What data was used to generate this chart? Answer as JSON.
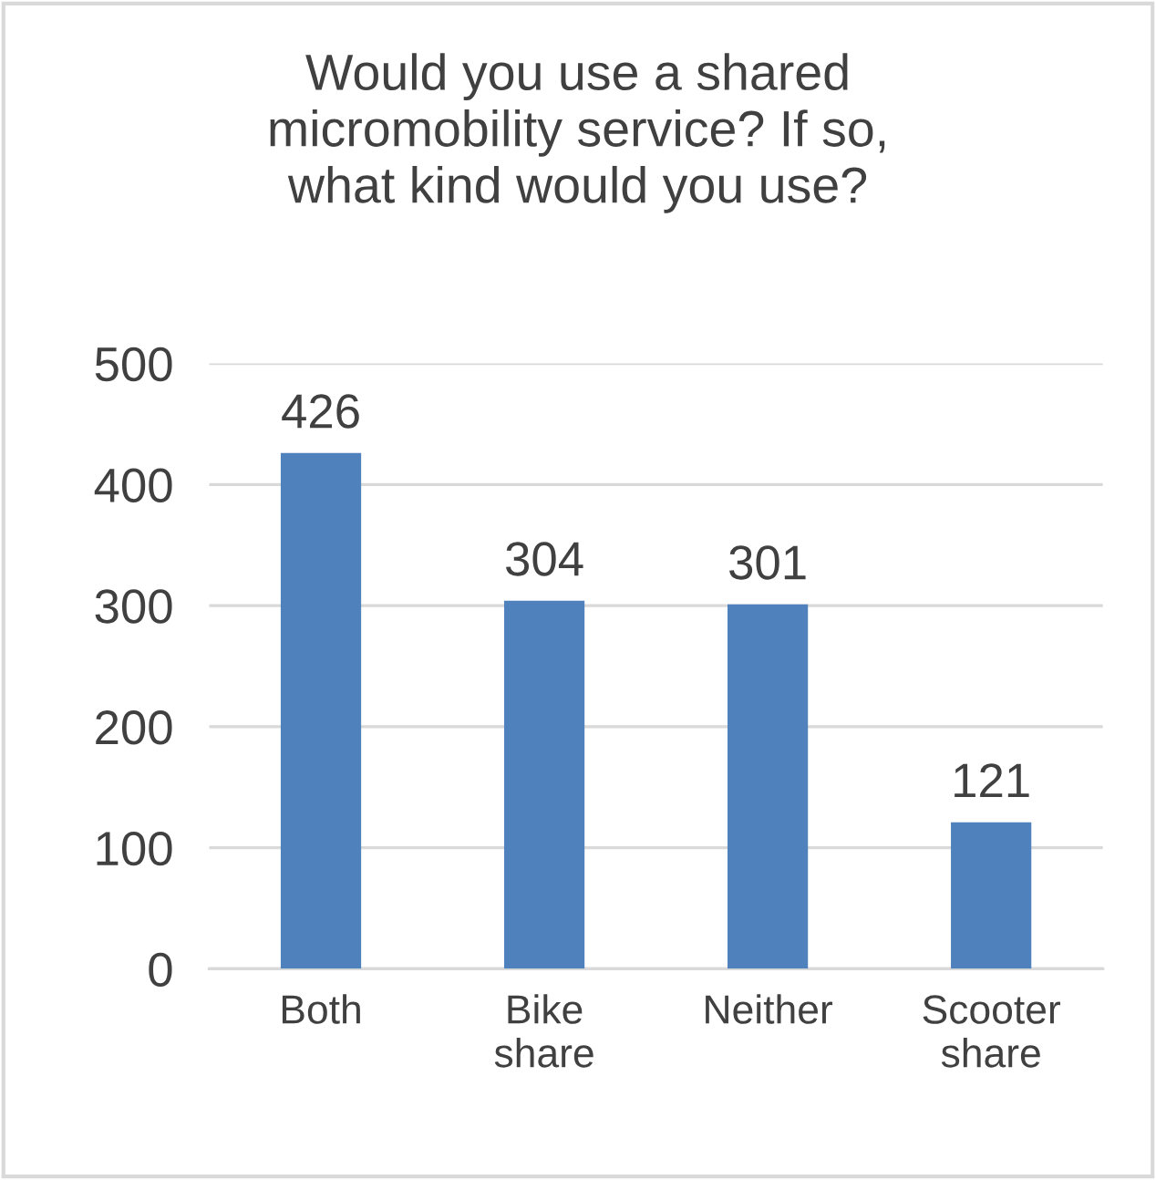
{
  "chart_data": {
    "type": "bar",
    "title": "Would you use a shared\nmicromobility service? If so,\nwhat kind would you use?",
    "categories": [
      "Both",
      "Bike\nshare",
      "Neither",
      "Scooter\nshare"
    ],
    "values": [
      426,
      304,
      301,
      121
    ],
    "color": "#4f81bd",
    "ylim": [
      0,
      500
    ],
    "yticks": [
      0,
      100,
      200,
      300,
      400,
      500
    ],
    "grid": "y",
    "data_labels": true
  }
}
